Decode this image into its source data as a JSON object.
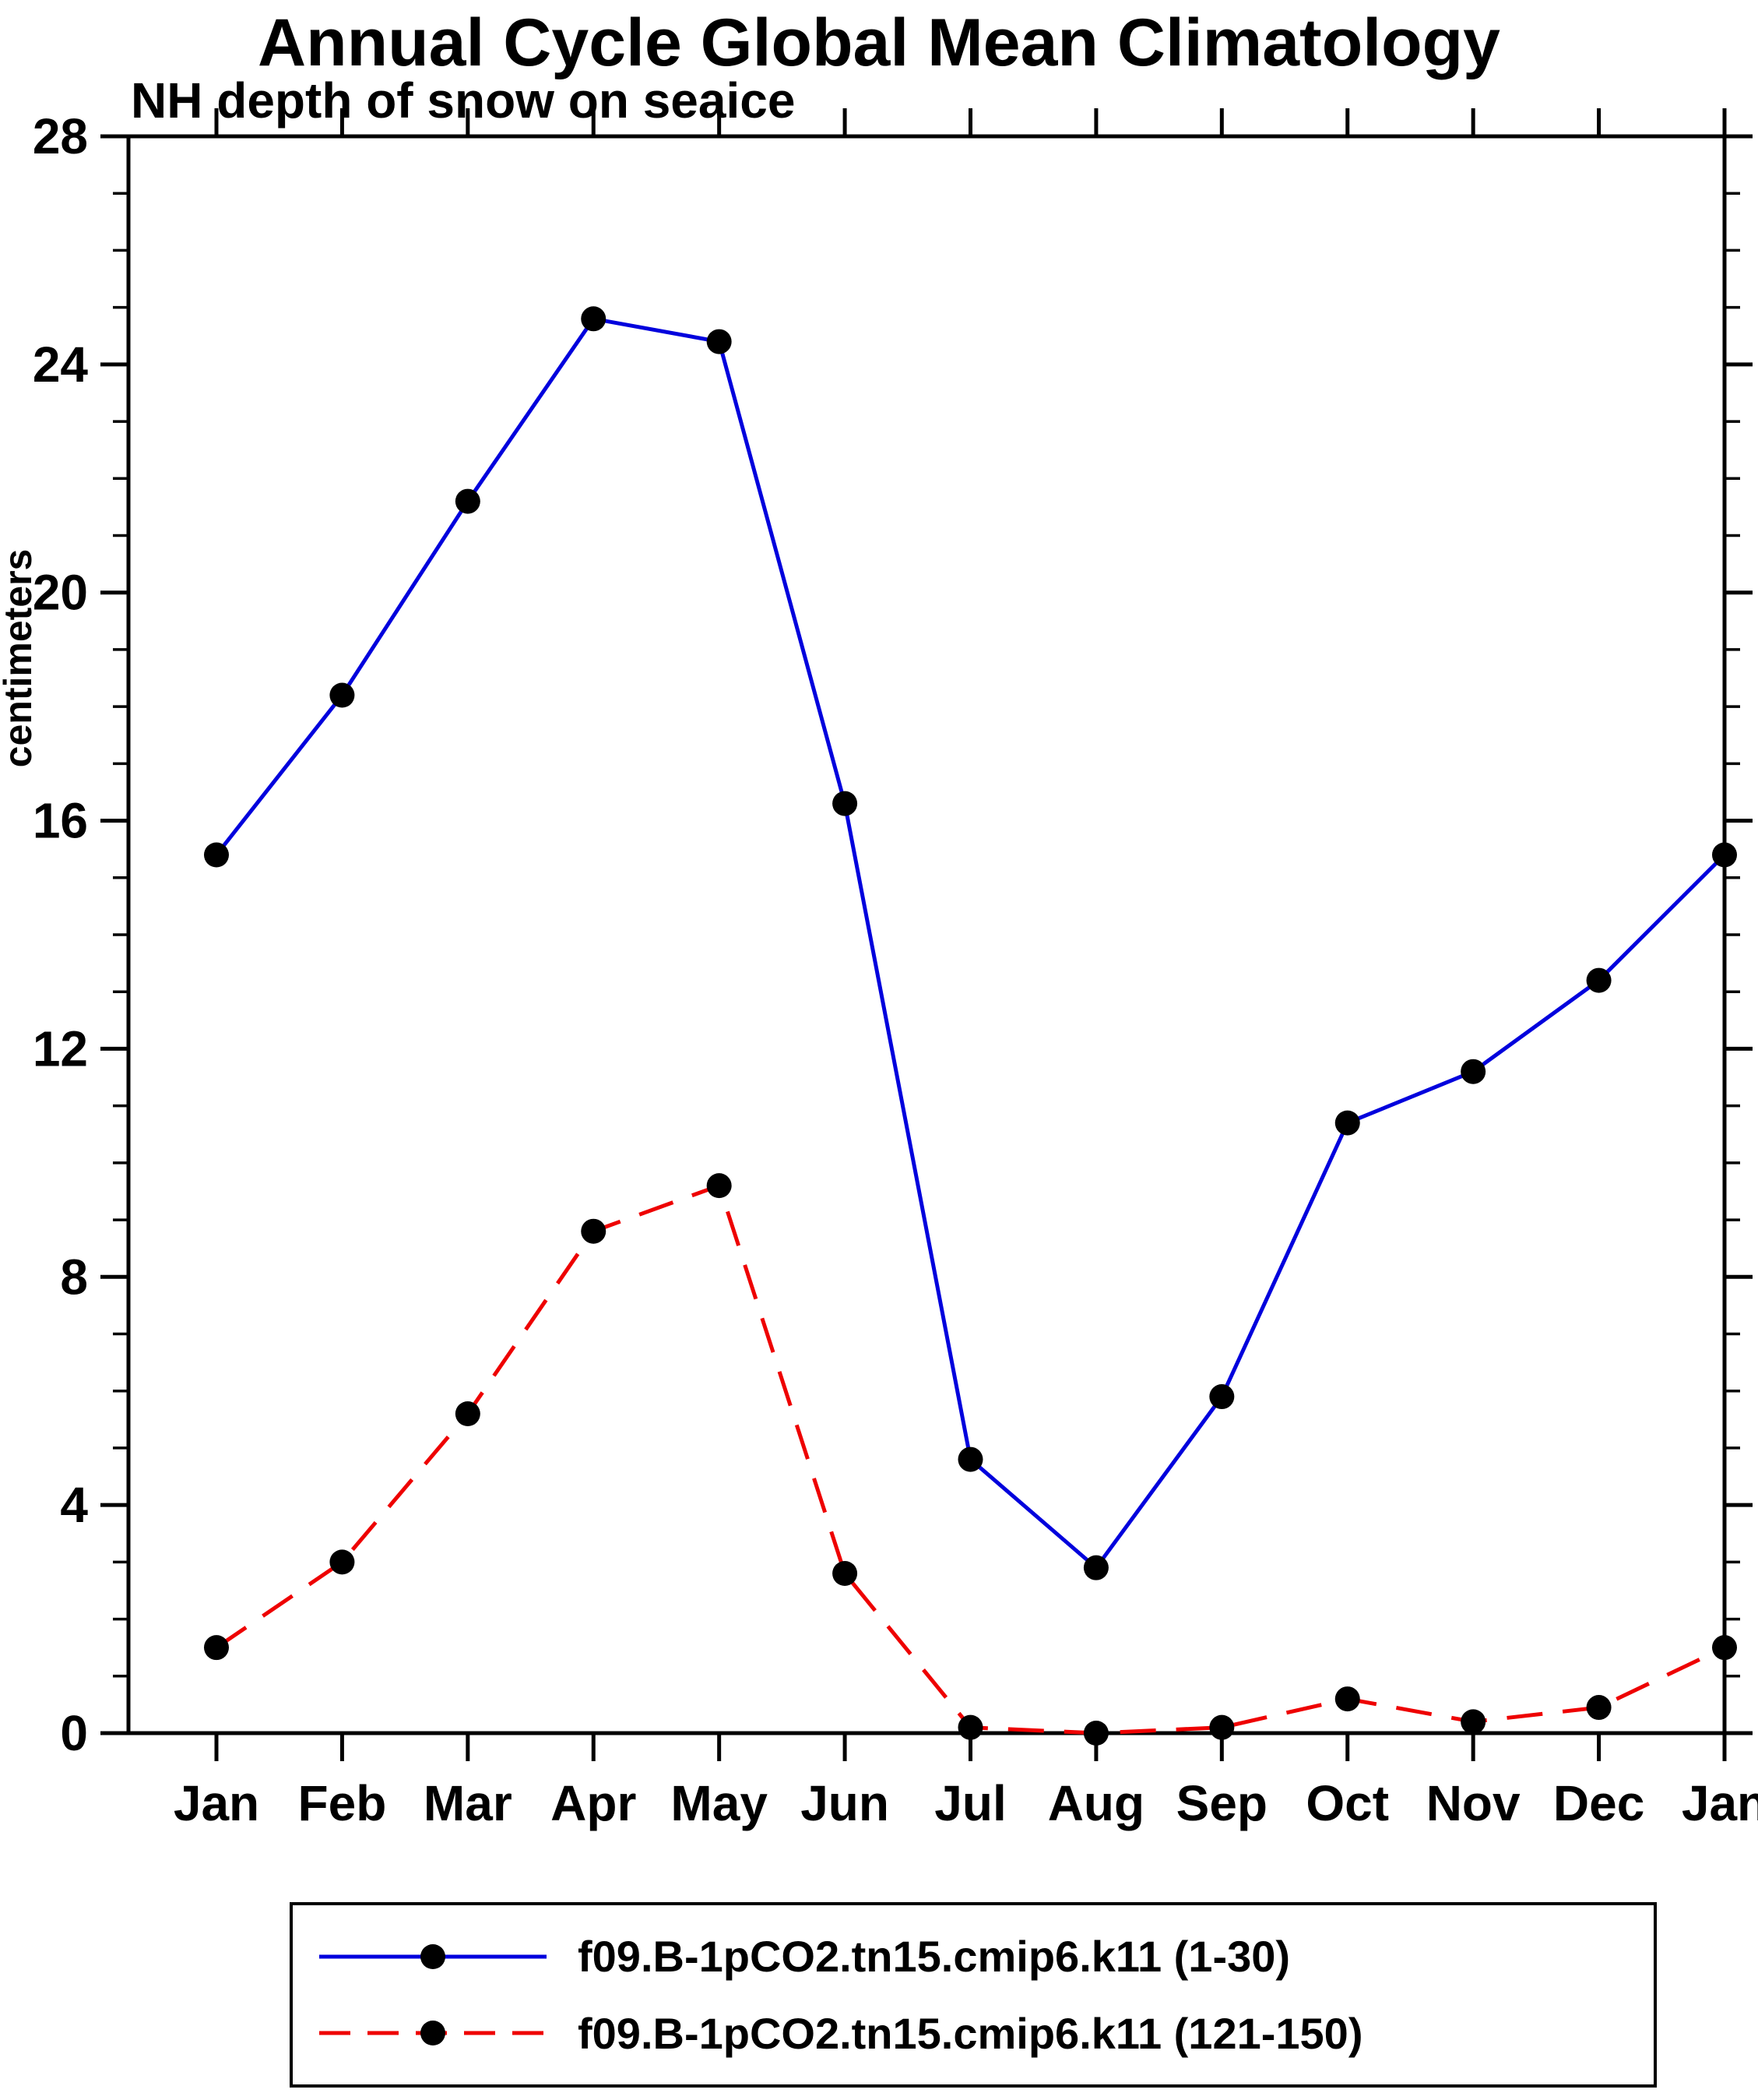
{
  "chart_data": {
    "type": "line",
    "title": "Annual Cycle Global Mean Climatology",
    "subtitle": "NH depth of snow on seaice",
    "ylabel": "centimeters",
    "xlabel": "",
    "x_categories": [
      "Jan",
      "Feb",
      "Mar",
      "Apr",
      "May",
      "Jun",
      "Jul",
      "Aug",
      "Sep",
      "Oct",
      "Nov",
      "Dec",
      "Jan"
    ],
    "ylim": [
      0,
      28
    ],
    "y_major_ticks": [
      0,
      4,
      8,
      12,
      16,
      20,
      24,
      28
    ],
    "y_minor_step": 1,
    "grid": false,
    "legend_position": "bottom-box",
    "axis_color": "#000000",
    "marker_radius": 16,
    "series": [
      {
        "name": "f09.B-1pCO2.tn15.cmip6.k11 (1-30)",
        "color": "#0000dd",
        "line_style": "solid",
        "marker": "filled-circle",
        "marker_color": "#000000",
        "values": [
          15.4,
          18.2,
          21.6,
          24.8,
          24.4,
          16.3,
          4.8,
          2.9,
          5.9,
          10.7,
          11.6,
          13.2,
          15.4
        ]
      },
      {
        "name": "f09.B-1pCO2.tn15.cmip6.k11 (121-150)",
        "color": "#ee0000",
        "line_style": "dashed",
        "marker": "filled-circle",
        "marker_color": "#000000",
        "values": [
          1.5,
          3.0,
          5.6,
          8.8,
          9.6,
          2.8,
          0.1,
          0.0,
          0.1,
          0.6,
          0.2,
          0.45,
          1.5
        ]
      }
    ]
  }
}
